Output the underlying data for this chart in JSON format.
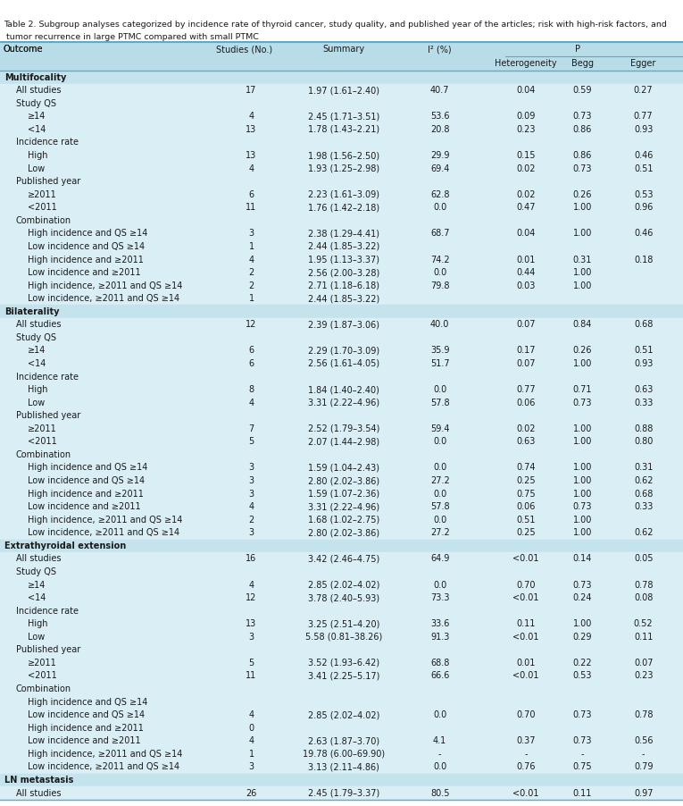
{
  "title_line1": "Table 2. Subgroup analyses categorized by incidence rate of thyroid cancer, study quality, and published year of the articles; risk with high-risk factors, and ",
  "title_line2": " tumor recurrence in large PTMC compared with small PTMC",
  "rows": [
    {
      "label": "Outcome",
      "indent": -1,
      "studies": "Studies (No.)",
      "summary": "Summary",
      "i2": "I² (%)",
      "het": "Heterogeneity",
      "begg": "Begg",
      "egger": "Egger",
      "header": true
    },
    {
      "label": "Multifocality",
      "indent": 0,
      "studies": "",
      "summary": "",
      "i2": "",
      "het": "",
      "begg": "",
      "egger": "",
      "section_start": true
    },
    {
      "label": "All studies",
      "indent": 1,
      "studies": "17",
      "summary": "1.97 (1.61–2.40)",
      "i2": "40.7",
      "het": "0.04",
      "begg": "0.59",
      "egger": "0.27"
    },
    {
      "label": "Study QS",
      "indent": 1,
      "studies": "",
      "summary": "",
      "i2": "",
      "het": "",
      "begg": "",
      "egger": ""
    },
    {
      "label": "≥14",
      "indent": 2,
      "studies": "4",
      "summary": "2.45 (1.71–3.51)",
      "i2": "53.6",
      "het": "0.09",
      "begg": "0.73",
      "egger": "0.77"
    },
    {
      "label": "<14",
      "indent": 2,
      "studies": "13",
      "summary": "1.78 (1.43–2.21)",
      "i2": "20.8",
      "het": "0.23",
      "begg": "0.86",
      "egger": "0.93"
    },
    {
      "label": "Incidence rate",
      "indent": 1,
      "studies": "",
      "summary": "",
      "i2": "",
      "het": "",
      "begg": "",
      "egger": ""
    },
    {
      "label": "High",
      "indent": 2,
      "studies": "13",
      "summary": "1.98 (1.56–2.50)",
      "i2": "29.9",
      "het": "0.15",
      "begg": "0.86",
      "egger": "0.46"
    },
    {
      "label": "Low",
      "indent": 2,
      "studies": "4",
      "summary": "1.93 (1.25–2.98)",
      "i2": "69.4",
      "het": "0.02",
      "begg": "0.73",
      "egger": "0.51"
    },
    {
      "label": "Published year",
      "indent": 1,
      "studies": "",
      "summary": "",
      "i2": "",
      "het": "",
      "begg": "",
      "egger": ""
    },
    {
      "label": "≥2011",
      "indent": 2,
      "studies": "6",
      "summary": "2.23 (1.61–3.09)",
      "i2": "62.8",
      "het": "0.02",
      "begg": "0.26",
      "egger": "0.53"
    },
    {
      "label": "<2011",
      "indent": 2,
      "studies": "11",
      "summary": "1.76 (1.42–2.18)",
      "i2": "0.0",
      "het": "0.47",
      "begg": "1.00",
      "egger": "0.96"
    },
    {
      "label": "Combination",
      "indent": 1,
      "studies": "",
      "summary": "",
      "i2": "",
      "het": "",
      "begg": "",
      "egger": ""
    },
    {
      "label": "High incidence and QS ≥14",
      "indent": 2,
      "studies": "3",
      "summary": "2.38 (1.29–4.41)",
      "i2": "68.7",
      "het": "0.04",
      "begg": "1.00",
      "egger": "0.46"
    },
    {
      "label": "Low incidence and QS ≥14",
      "indent": 2,
      "studies": "1",
      "summary": "2.44 (1.85–3.22)",
      "i2": "",
      "het": "",
      "begg": "",
      "egger": ""
    },
    {
      "label": "High incidence and ≥2011",
      "indent": 2,
      "studies": "4",
      "summary": "1.95 (1.13–3.37)",
      "i2": "74.2",
      "het": "0.01",
      "begg": "0.31",
      "egger": "0.18"
    },
    {
      "label": "Low incidence and ≥2011",
      "indent": 2,
      "studies": "2",
      "summary": "2.56 (2.00–3.28)",
      "i2": "0.0",
      "het": "0.44",
      "begg": "1.00",
      "egger": ""
    },
    {
      "label": "High incidence, ≥2011 and QS ≥14",
      "indent": 2,
      "studies": "2",
      "summary": "2.71 (1.18–6.18)",
      "i2": "79.8",
      "het": "0.03",
      "begg": "1.00",
      "egger": ""
    },
    {
      "label": "Low incidence, ≥2011 and QS ≥14",
      "indent": 2,
      "studies": "1",
      "summary": "2.44 (1.85–3.22)",
      "i2": "",
      "het": "",
      "begg": "",
      "egger": ""
    },
    {
      "label": "Bilaterality",
      "indent": 0,
      "studies": "",
      "summary": "",
      "i2": "",
      "het": "",
      "begg": "",
      "egger": "",
      "section_start": true
    },
    {
      "label": "All studies",
      "indent": 1,
      "studies": "12",
      "summary": "2.39 (1.87–3.06)",
      "i2": "40.0",
      "het": "0.07",
      "begg": "0.84",
      "egger": "0.68"
    },
    {
      "label": "Study QS",
      "indent": 1,
      "studies": "",
      "summary": "",
      "i2": "",
      "het": "",
      "begg": "",
      "egger": ""
    },
    {
      "label": "≥14",
      "indent": 2,
      "studies": "6",
      "summary": "2.29 (1.70–3.09)",
      "i2": "35.9",
      "het": "0.17",
      "begg": "0.26",
      "egger": "0.51"
    },
    {
      "label": "<14",
      "indent": 2,
      "studies": "6",
      "summary": "2.56 (1.61–4.05)",
      "i2": "51.7",
      "het": "0.07",
      "begg": "1.00",
      "egger": "0.93"
    },
    {
      "label": "Incidence rate",
      "indent": 1,
      "studies": "",
      "summary": "",
      "i2": "",
      "het": "",
      "begg": "",
      "egger": ""
    },
    {
      "label": "High",
      "indent": 2,
      "studies": "8",
      "summary": "1.84 (1.40–2.40)",
      "i2": "0.0",
      "het": "0.77",
      "begg": "0.71",
      "egger": "0.63"
    },
    {
      "label": "Low",
      "indent": 2,
      "studies": "4",
      "summary": "3.31 (2.22–4.96)",
      "i2": "57.8",
      "het": "0.06",
      "begg": "0.73",
      "egger": "0.33"
    },
    {
      "label": "Published year",
      "indent": 1,
      "studies": "",
      "summary": "",
      "i2": "",
      "het": "",
      "begg": "",
      "egger": ""
    },
    {
      "label": "≥2011",
      "indent": 2,
      "studies": "7",
      "summary": "2.52 (1.79–3.54)",
      "i2": "59.4",
      "het": "0.02",
      "begg": "1.00",
      "egger": "0.88"
    },
    {
      "label": "<2011",
      "indent": 2,
      "studies": "5",
      "summary": "2.07 (1.44–2.98)",
      "i2": "0.0",
      "het": "0.63",
      "begg": "1.00",
      "egger": "0.80"
    },
    {
      "label": "Combination",
      "indent": 1,
      "studies": "",
      "summary": "",
      "i2": "",
      "het": "",
      "begg": "",
      "egger": ""
    },
    {
      "label": "High incidence and QS ≥14",
      "indent": 2,
      "studies": "3",
      "summary": "1.59 (1.04–2.43)",
      "i2": "0.0",
      "het": "0.74",
      "begg": "1.00",
      "egger": "0.31"
    },
    {
      "label": "Low incidence and QS ≥14",
      "indent": 2,
      "studies": "3",
      "summary": "2.80 (2.02–3.86)",
      "i2": "27.2",
      "het": "0.25",
      "begg": "1.00",
      "egger": "0.62"
    },
    {
      "label": "High incidence and ≥2011",
      "indent": 2,
      "studies": "3",
      "summary": "1.59 (1.07–2.36)",
      "i2": "0.0",
      "het": "0.75",
      "begg": "1.00",
      "egger": "0.68"
    },
    {
      "label": "Low incidence and ≥2011",
      "indent": 2,
      "studies": "4",
      "summary": "3.31 (2.22–4.96)",
      "i2": "57.8",
      "het": "0.06",
      "begg": "0.73",
      "egger": "0.33"
    },
    {
      "label": "High incidence, ≥2011 and QS ≥14",
      "indent": 2,
      "studies": "2",
      "summary": "1.68 (1.02–2.75)",
      "i2": "0.0",
      "het": "0.51",
      "begg": "1.00",
      "egger": ""
    },
    {
      "label": "Low incidence, ≥2011 and QS ≥14",
      "indent": 2,
      "studies": "3",
      "summary": "2.80 (2.02–3.86)",
      "i2": "27.2",
      "het": "0.25",
      "begg": "1.00",
      "egger": "0.62"
    },
    {
      "label": "Extrathyroidal extension",
      "indent": 0,
      "studies": "",
      "summary": "",
      "i2": "",
      "het": "",
      "begg": "",
      "egger": "",
      "section_start": true
    },
    {
      "label": "All studies",
      "indent": 1,
      "studies": "16",
      "summary": "3.42 (2.46–4.75)",
      "i2": "64.9",
      "het": "<0.01",
      "begg": "0.14",
      "egger": "0.05"
    },
    {
      "label": "Study QS",
      "indent": 1,
      "studies": "",
      "summary": "",
      "i2": "",
      "het": "",
      "begg": "",
      "egger": ""
    },
    {
      "label": "≥14",
      "indent": 2,
      "studies": "4",
      "summary": "2.85 (2.02–4.02)",
      "i2": "0.0",
      "het": "0.70",
      "begg": "0.73",
      "egger": "0.78"
    },
    {
      "label": "<14",
      "indent": 2,
      "studies": "12",
      "summary": "3.78 (2.40–5.93)",
      "i2": "73.3",
      "het": "<0.01",
      "begg": "0.24",
      "egger": "0.08"
    },
    {
      "label": "Incidence rate",
      "indent": 1,
      "studies": "",
      "summary": "",
      "i2": "",
      "het": "",
      "begg": "",
      "egger": ""
    },
    {
      "label": "High",
      "indent": 2,
      "studies": "13",
      "summary": "3.25 (2.51–4.20)",
      "i2": "33.6",
      "het": "0.11",
      "begg": "1.00",
      "egger": "0.52"
    },
    {
      "label": "Low",
      "indent": 2,
      "studies": "3",
      "summary": "5.58 (0.81–38.26)",
      "i2": "91.3",
      "het": "<0.01",
      "begg": "0.29",
      "egger": "0.11"
    },
    {
      "label": "Published year",
      "indent": 1,
      "studies": "",
      "summary": "",
      "i2": "",
      "het": "",
      "begg": "",
      "egger": ""
    },
    {
      "label": "≥2011",
      "indent": 2,
      "studies": "5",
      "summary": "3.52 (1.93–6.42)",
      "i2": "68.8",
      "het": "0.01",
      "begg": "0.22",
      "egger": "0.07"
    },
    {
      "label": "<2011",
      "indent": 2,
      "studies": "11",
      "summary": "3.41 (2.25–5.17)",
      "i2": "66.6",
      "het": "<0.01",
      "begg": "0.53",
      "egger": "0.23"
    },
    {
      "label": "Combination",
      "indent": 1,
      "studies": "",
      "summary": "",
      "i2": "",
      "het": "",
      "begg": "",
      "egger": ""
    },
    {
      "label": "High incidence and QS ≥14",
      "indent": 2,
      "studies": "",
      "summary": "",
      "i2": "",
      "het": "",
      "begg": "",
      "egger": ""
    },
    {
      "label": "Low incidence and QS ≥14",
      "indent": 2,
      "studies": "4",
      "summary": "2.85 (2.02–4.02)",
      "i2": "0.0",
      "het": "0.70",
      "begg": "0.73",
      "egger": "0.78"
    },
    {
      "label": "High incidence and ≥2011",
      "indent": 2,
      "studies": "0",
      "summary": "",
      "i2": "",
      "het": "",
      "begg": "",
      "egger": ""
    },
    {
      "label": "Low incidence and ≥2011",
      "indent": 2,
      "studies": "4",
      "summary": "2.63 (1.87–3.70)",
      "i2": "4.1",
      "het": "0.37",
      "begg": "0.73",
      "egger": "0.56"
    },
    {
      "label": "High incidence, ≥2011 and QS ≥14",
      "indent": 2,
      "studies": "1",
      "summary": "19.78 (6.00–69.90)",
      "i2": "-",
      "het": "-",
      "begg": "-",
      "egger": "-"
    },
    {
      "label": "Low incidence, ≥2011 and QS ≥14",
      "indent": 2,
      "studies": "3",
      "summary": "3.13 (2.11–4.86)",
      "i2": "0.0",
      "het": "0.76",
      "begg": "0.75",
      "egger": "0.79"
    },
    {
      "label": "LN metastasis",
      "indent": 0,
      "studies": "",
      "summary": "",
      "i2": "",
      "het": "",
      "begg": "",
      "egger": "",
      "section_start": true
    },
    {
      "label": "All studies",
      "indent": 1,
      "studies": "26",
      "summary": "2.45 (1.79–3.37)",
      "i2": "80.5",
      "het": "<0.01",
      "begg": "0.11",
      "egger": "0.97"
    }
  ],
  "col_x_frac": {
    "outcome": 0.005,
    "studies": 0.333,
    "summary": 0.478,
    "i2": 0.626,
    "het": 0.74,
    "begg": 0.833,
    "egger": 0.922
  },
  "bg_light": "#daeef5",
  "bg_section": "#c5e3ed",
  "bg_header": "#b8dce8",
  "line_color": "#5aacca",
  "text_color": "#1a1a1a",
  "font_size": 7.0,
  "title_font_size": 6.8
}
